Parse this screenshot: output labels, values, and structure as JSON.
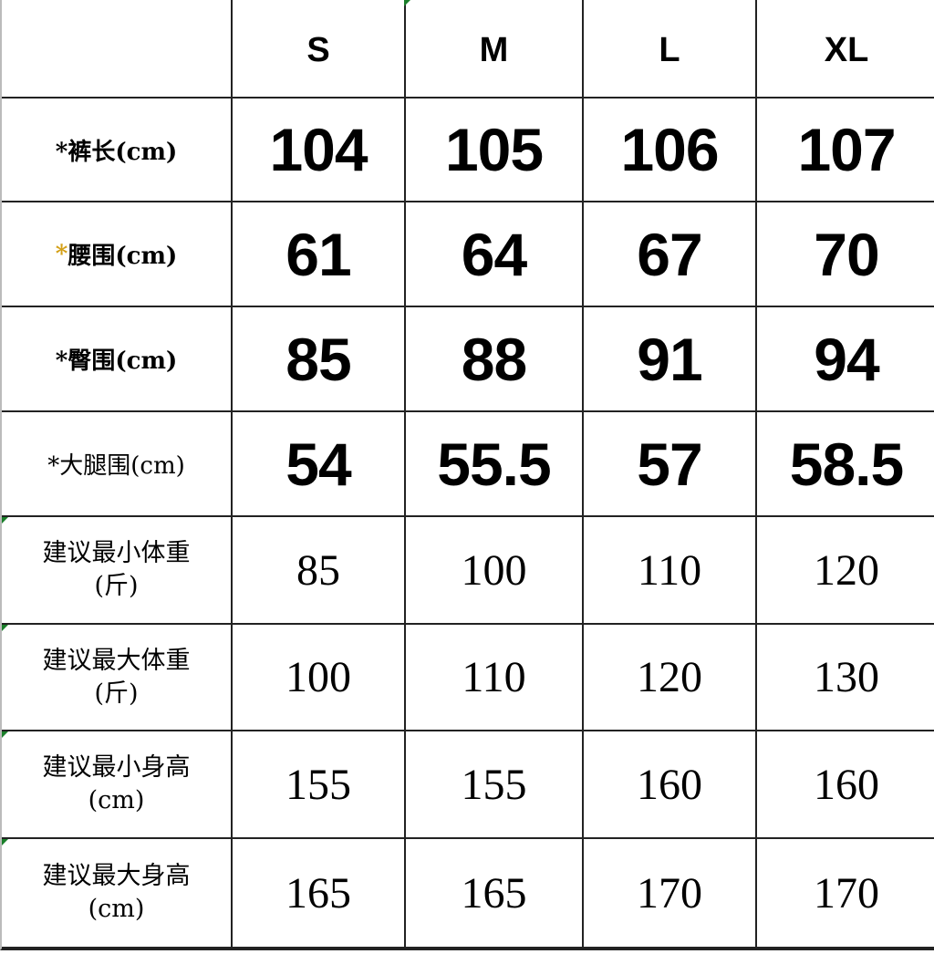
{
  "header": {
    "corner": "",
    "sizes": [
      "S",
      "M",
      "L",
      "XL"
    ]
  },
  "measure_rows": [
    {
      "label": "*裤长(cm)",
      "star_color": "#000000",
      "values": [
        "104",
        "105",
        "106",
        "107"
      ]
    },
    {
      "label": "腰围(cm)",
      "star": "*",
      "star_color": "#d4a017",
      "values": [
        "61",
        "64",
        "67",
        "70"
      ]
    },
    {
      "label": "*臀围(cm)",
      "star_color": "#000000",
      "values": [
        "85",
        "88",
        "91",
        "94"
      ]
    },
    {
      "label": "*大腿围(cm)",
      "star_color": "#000000",
      "values": [
        "54",
        "55.5",
        "57",
        "58.5"
      ]
    }
  ],
  "recommend_rows": [
    {
      "label": "建议最小体重",
      "unit": "(斤)",
      "values": [
        "85",
        "100",
        "110",
        "120"
      ]
    },
    {
      "label": "建议最大体重",
      "unit": "(斤)",
      "values": [
        "100",
        "110",
        "120",
        "130"
      ]
    },
    {
      "label": "建议最小身高",
      "unit": "(cm)",
      "values": [
        "155",
        "155",
        "160",
        "160"
      ]
    },
    {
      "label": "建议最大身高",
      "unit": "(cm)",
      "values": [
        "165",
        "165",
        "170",
        "170"
      ]
    }
  ]
}
